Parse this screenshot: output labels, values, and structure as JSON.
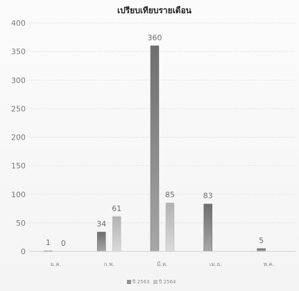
{
  "chart_data": {
    "type": "bar",
    "title": "เปรียบเทียบรายเดือน",
    "xlabel": "",
    "ylabel": "",
    "categories": [
      "ม.ค.",
      "ก.พ.",
      "มี.ค.",
      "เม.ย.",
      "พ.ค."
    ],
    "series": [
      {
        "name": "ปี 2563",
        "values": [
          1,
          34,
          360,
          83,
          5
        ],
        "color": "#8f8f8f"
      },
      {
        "name": "ปี 2564",
        "values": [
          0,
          61,
          85,
          null,
          null
        ],
        "color": "#c4c4c4"
      }
    ],
    "ylim": [
      0,
      400
    ],
    "yticks": [
      0,
      50,
      100,
      150,
      200,
      250,
      300,
      350,
      400
    ],
    "grid": true,
    "legend_position": "bottom"
  }
}
